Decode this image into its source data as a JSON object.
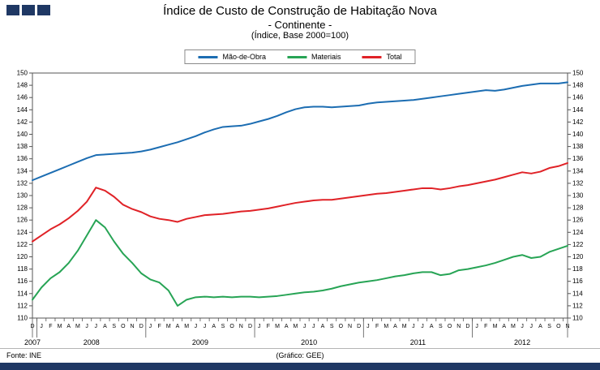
{
  "header": {
    "title": "Índice de Custo de Construção de Habitação Nova",
    "subtitle": "- Continente -",
    "index_note": "(Índice, Base 2000=100)"
  },
  "footer": {
    "source": "Fonte: INE",
    "credit": "(Gráfico: GEE)"
  },
  "colors": {
    "brand_navy": "#1F3864",
    "axis": "#555555"
  },
  "chart_data": {
    "type": "line",
    "title": "Índice de Custo de Construção de Habitação Nova - Continente (Índice, Base 2000=100)",
    "xlabel": "",
    "ylabel": "",
    "ylim": [
      110,
      150
    ],
    "ytick_step": 2,
    "grid": false,
    "legend_position": "top",
    "x_months": [
      "D",
      "J",
      "F",
      "M",
      "A",
      "M",
      "J",
      "J",
      "A",
      "S",
      "O",
      "N",
      "D",
      "J",
      "F",
      "M",
      "A",
      "M",
      "J",
      "J",
      "A",
      "S",
      "O",
      "N",
      "D",
      "J",
      "F",
      "M",
      "A",
      "M",
      "J",
      "J",
      "A",
      "S",
      "O",
      "N",
      "D",
      "J",
      "F",
      "M",
      "A",
      "M",
      "J",
      "J",
      "A",
      "S",
      "O",
      "N",
      "D",
      "J",
      "F",
      "M",
      "A",
      "M",
      "J",
      "J",
      "A",
      "S",
      "O",
      "N"
    ],
    "years": [
      {
        "label": "2007",
        "start": 0,
        "end": 0
      },
      {
        "label": "2008",
        "start": 1,
        "end": 12
      },
      {
        "label": "2009",
        "start": 13,
        "end": 24
      },
      {
        "label": "2010",
        "start": 25,
        "end": 36
      },
      {
        "label": "2011",
        "start": 37,
        "end": 48
      },
      {
        "label": "2012",
        "start": 49,
        "end": 59
      }
    ],
    "series": [
      {
        "name": "Mão-de-Obra",
        "color": "#1C6DB2",
        "values": [
          132.5,
          133.1,
          133.7,
          134.3,
          134.9,
          135.5,
          136.1,
          136.6,
          136.7,
          136.8,
          136.9,
          137.0,
          137.2,
          137.5,
          137.9,
          138.3,
          138.7,
          139.2,
          139.7,
          140.3,
          140.8,
          141.2,
          141.3,
          141.4,
          141.7,
          142.1,
          142.5,
          143.0,
          143.6,
          144.1,
          144.4,
          144.5,
          144.5,
          144.4,
          144.5,
          144.6,
          144.7,
          145.0,
          145.2,
          145.3,
          145.4,
          145.5,
          145.6,
          145.8,
          146.0,
          146.2,
          146.4,
          146.6,
          146.8,
          147.0,
          147.2,
          147.1,
          147.3,
          147.6,
          147.9,
          148.1,
          148.3,
          148.3,
          148.3,
          148.5
        ]
      },
      {
        "name": "Materiais",
        "color": "#27A455",
        "values": [
          113.0,
          115.0,
          116.5,
          117.5,
          119.0,
          121.0,
          123.5,
          126.0,
          124.8,
          122.5,
          120.5,
          119.0,
          117.3,
          116.3,
          115.8,
          114.5,
          112.0,
          113.0,
          113.4,
          113.5,
          113.4,
          113.5,
          113.4,
          113.5,
          113.5,
          113.4,
          113.5,
          113.6,
          113.8,
          114.0,
          114.2,
          114.3,
          114.5,
          114.8,
          115.2,
          115.5,
          115.8,
          116.0,
          116.2,
          116.5,
          116.8,
          117.0,
          117.3,
          117.5,
          117.5,
          117.0,
          117.2,
          117.8,
          118.0,
          118.3,
          118.6,
          119.0,
          119.5,
          120.0,
          120.3,
          119.8,
          120.0,
          120.8,
          121.3,
          121.8
        ]
      },
      {
        "name": "Total",
        "color": "#E02227",
        "values": [
          122.5,
          123.5,
          124.5,
          125.3,
          126.3,
          127.5,
          129.0,
          131.3,
          130.8,
          129.8,
          128.5,
          127.8,
          127.3,
          126.6,
          126.2,
          126.0,
          125.7,
          126.2,
          126.5,
          126.8,
          126.9,
          127.0,
          127.2,
          127.4,
          127.5,
          127.7,
          127.9,
          128.2,
          128.5,
          128.8,
          129.0,
          129.2,
          129.3,
          129.3,
          129.5,
          129.7,
          129.9,
          130.1,
          130.3,
          130.4,
          130.6,
          130.8,
          131.0,
          131.2,
          131.2,
          131.0,
          131.2,
          131.5,
          131.7,
          132.0,
          132.3,
          132.6,
          133.0,
          133.4,
          133.8,
          133.6,
          133.9,
          134.5,
          134.8,
          135.3
        ]
      }
    ]
  }
}
